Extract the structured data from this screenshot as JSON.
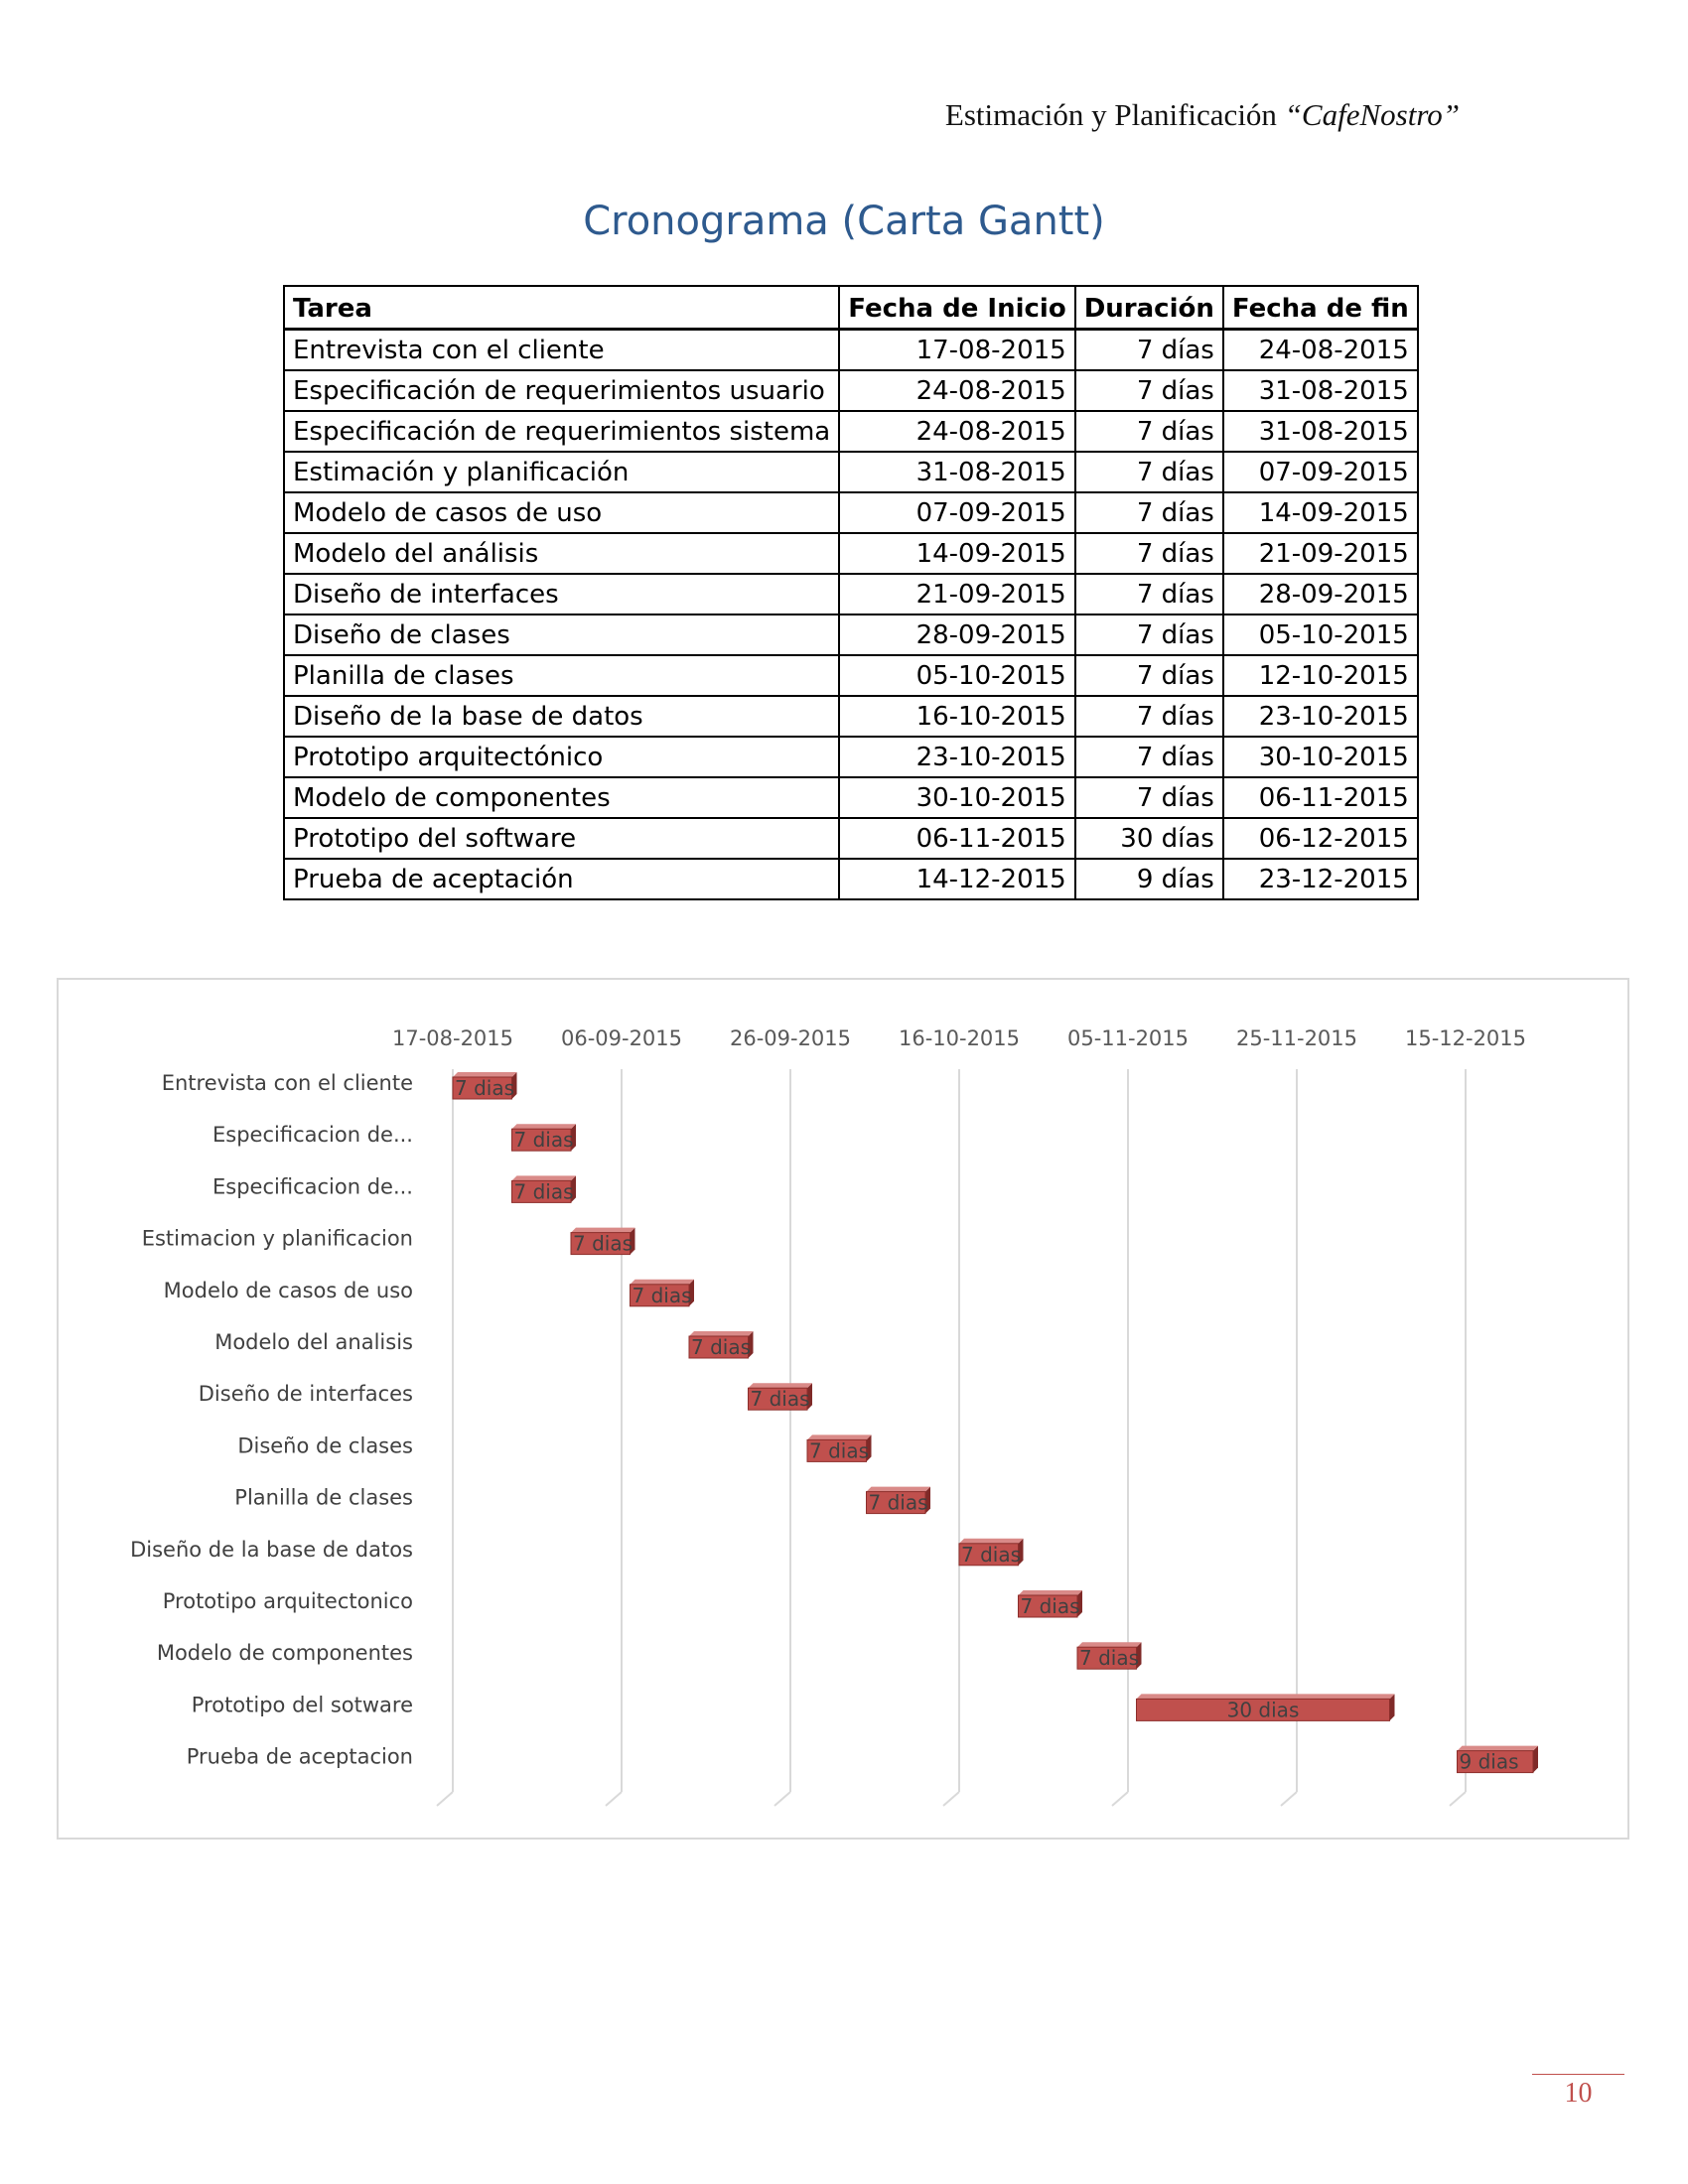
{
  "header": {
    "text": "Estimación y Planificación ",
    "italic": "“CafeNostro”"
  },
  "title": "Cronograma (Carta Gantt)",
  "table": {
    "columns": [
      "Tarea",
      "Fecha de Inicio",
      "Duración",
      "Fecha de fin"
    ],
    "rows": [
      [
        "Entrevista con el cliente",
        "17-08-2015",
        "7 días",
        "24-08-2015"
      ],
      [
        "Especificación de requerimientos usuario",
        "24-08-2015",
        "7 días",
        "31-08-2015"
      ],
      [
        "Especificación de requerimientos sistema",
        "24-08-2015",
        "7 días",
        "31-08-2015"
      ],
      [
        "Estimación y planificación",
        "31-08-2015",
        "7 días",
        "07-09-2015"
      ],
      [
        "Modelo de casos de uso",
        "07-09-2015",
        "7 días",
        "14-09-2015"
      ],
      [
        "Modelo del análisis",
        "14-09-2015",
        "7 días",
        "21-09-2015"
      ],
      [
        "Diseño de interfaces",
        "21-09-2015",
        "7 días",
        "28-09-2015"
      ],
      [
        "Diseño de clases",
        "28-09-2015",
        "7 días",
        "05-10-2015"
      ],
      [
        "Planilla de clases",
        "05-10-2015",
        "7 días",
        "12-10-2015"
      ],
      [
        "Diseño de la base de datos",
        "16-10-2015",
        "7 días",
        "23-10-2015"
      ],
      [
        "Prototipo arquitectónico",
        "23-10-2015",
        "7 días",
        "30-10-2015"
      ],
      [
        "Modelo de componentes",
        "30-10-2015",
        "7 días",
        "06-11-2015"
      ],
      [
        "Prototipo del software",
        "06-11-2015",
        "30 días",
        "06-12-2015"
      ],
      [
        "Prueba de aceptación",
        "14-12-2015",
        "9 días",
        "23-12-2015"
      ]
    ]
  },
  "chart_data": {
    "type": "bar",
    "orientation": "horizontal-gantt",
    "x_ticks": [
      "17-08-2015",
      "06-09-2015",
      "26-09-2015",
      "16-10-2015",
      "05-11-2015",
      "25-11-2015",
      "15-12-2015"
    ],
    "xlim": [
      "17-08-2015",
      "25-12-2015"
    ],
    "grid": true,
    "legend": "none",
    "bar_color": "#c0504d",
    "categories": [
      "Entrevista con el cliente",
      "Especificacion de...",
      "Especificacion de...",
      "Estimacion y planificacion",
      "Modelo de casos de uso",
      "Modelo del analisis",
      "Diseño de interfaces",
      "Diseño de clases",
      "Planilla de clases",
      "Diseño de la base de datos",
      "Prototipo arquitectonico",
      "Modelo de componentes",
      "Prototipo del sotware",
      "Prueba de aceptacion"
    ],
    "start": [
      "17-08-2015",
      "24-08-2015",
      "24-08-2015",
      "31-08-2015",
      "07-09-2015",
      "14-09-2015",
      "21-09-2015",
      "28-09-2015",
      "05-10-2015",
      "16-10-2015",
      "23-10-2015",
      "30-10-2015",
      "06-11-2015",
      "14-12-2015"
    ],
    "duration_days": [
      7,
      7,
      7,
      7,
      7,
      7,
      7,
      7,
      7,
      7,
      7,
      7,
      30,
      9
    ],
    "bar_labels": [
      "7 dias",
      "7 dias",
      "7 dias",
      "7 dias",
      "7 dias",
      "7 dias",
      "7 dias",
      "7 dias",
      "7 dias",
      "7 dias",
      "7 dias",
      "7 dias",
      "30 dias",
      "9 dias"
    ]
  },
  "page_number": "10"
}
